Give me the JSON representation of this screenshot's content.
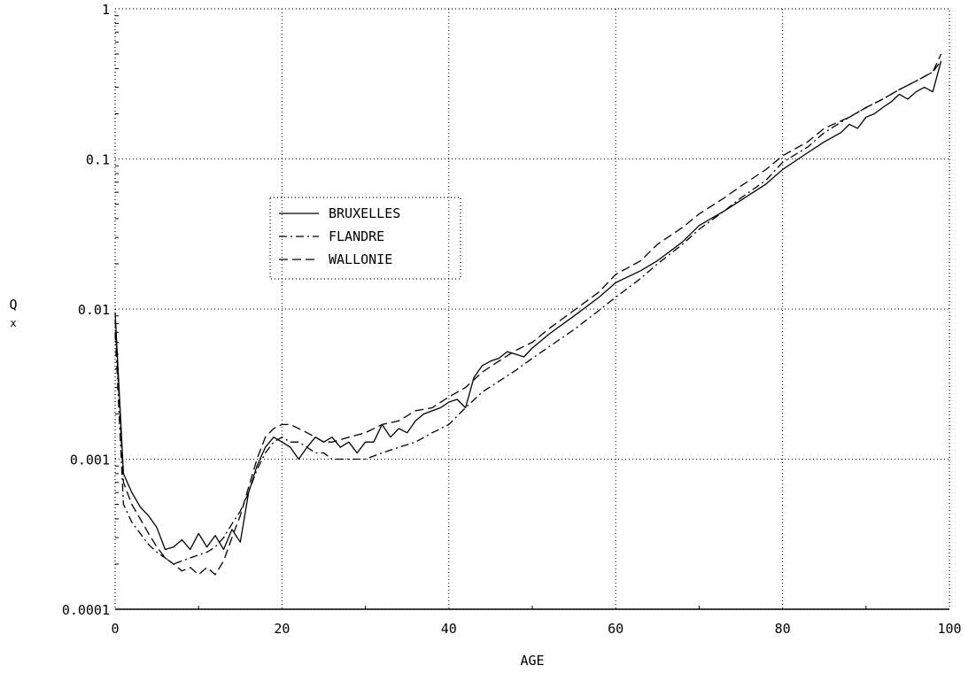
{
  "chart_data": {
    "type": "line",
    "title": "",
    "xlabel": "AGE",
    "ylabel": "Q",
    "ylabel_subscript": "x",
    "xlim": [
      0,
      100
    ],
    "ylim": [
      0.0001,
      1
    ],
    "yscale": "log",
    "grid": true,
    "legend_position": "upper-left",
    "x_ticks": [
      0,
      20,
      40,
      60,
      80,
      100
    ],
    "x_tick_labels": [
      "0",
      "20",
      "40",
      "60",
      "80",
      "100"
    ],
    "y_ticks": [
      0.0001,
      0.001,
      0.01,
      0.1,
      1
    ],
    "y_tick_labels": [
      "0.0001",
      "0.001",
      "0.01",
      "0.1",
      "1"
    ],
    "series": [
      {
        "name": "BRUXELLES",
        "dash": "solid",
        "x": [
          0,
          1,
          2,
          3,
          4,
          5,
          6,
          7,
          8,
          9,
          10,
          11,
          12,
          13,
          14,
          15,
          16,
          17,
          18,
          19,
          20,
          21,
          22,
          23,
          24,
          25,
          26,
          27,
          28,
          29,
          30,
          31,
          32,
          33,
          34,
          35,
          36,
          37,
          38,
          39,
          40,
          41,
          42,
          43,
          44,
          45,
          46,
          47,
          48,
          49,
          50,
          52,
          55,
          58,
          60,
          63,
          65,
          68,
          70,
          73,
          75,
          78,
          80,
          83,
          85,
          87,
          88,
          89,
          90,
          91,
          92,
          93,
          94,
          95,
          96,
          97,
          98,
          99
        ],
        "y": [
          0.0095,
          0.0008,
          0.0006,
          0.00048,
          0.00042,
          0.00035,
          0.00025,
          0.00026,
          0.00029,
          0.00025,
          0.00032,
          0.00026,
          0.00031,
          0.00025,
          0.00034,
          0.00028,
          0.0006,
          0.0009,
          0.0012,
          0.0014,
          0.0013,
          0.0012,
          0.001,
          0.0012,
          0.0014,
          0.0013,
          0.0014,
          0.0012,
          0.0013,
          0.0011,
          0.0013,
          0.0013,
          0.0017,
          0.0014,
          0.0016,
          0.0015,
          0.0018,
          0.002,
          0.0021,
          0.0022,
          0.0024,
          0.0025,
          0.0022,
          0.0035,
          0.0042,
          0.0045,
          0.0047,
          0.0052,
          0.005,
          0.0048,
          0.0055,
          0.0068,
          0.009,
          0.012,
          0.015,
          0.018,
          0.021,
          0.028,
          0.036,
          0.045,
          0.053,
          0.068,
          0.085,
          0.11,
          0.13,
          0.15,
          0.17,
          0.16,
          0.19,
          0.2,
          0.22,
          0.24,
          0.27,
          0.25,
          0.28,
          0.3,
          0.28,
          0.45
        ]
      },
      {
        "name": "FLANDRE",
        "dash": "dash-dot",
        "x": [
          0,
          1,
          2,
          3,
          4,
          5,
          6,
          7,
          8,
          9,
          10,
          11,
          12,
          13,
          14,
          15,
          16,
          17,
          18,
          19,
          20,
          21,
          22,
          23,
          24,
          25,
          26,
          27,
          28,
          29,
          30,
          32,
          34,
          36,
          38,
          40,
          42,
          44,
          46,
          48,
          50,
          52,
          55,
          58,
          60,
          63,
          65,
          68,
          70,
          73,
          75,
          78,
          80,
          83,
          85,
          88,
          90,
          92,
          94,
          96,
          98,
          99
        ],
        "y": [
          0.007,
          0.0005,
          0.00038,
          0.00032,
          0.00027,
          0.00024,
          0.00022,
          0.0002,
          0.00021,
          0.00022,
          0.00023,
          0.00024,
          0.00026,
          0.0003,
          0.00037,
          0.00045,
          0.0006,
          0.00085,
          0.0011,
          0.0013,
          0.0014,
          0.0013,
          0.0013,
          0.0012,
          0.0011,
          0.0011,
          0.001,
          0.001,
          0.001,
          0.001,
          0.001,
          0.0011,
          0.0012,
          0.0013,
          0.0015,
          0.0017,
          0.0022,
          0.0028,
          0.0033,
          0.0039,
          0.0047,
          0.0056,
          0.0073,
          0.0098,
          0.012,
          0.016,
          0.02,
          0.027,
          0.034,
          0.045,
          0.055,
          0.072,
          0.095,
          0.12,
          0.15,
          0.19,
          0.22,
          0.25,
          0.29,
          0.33,
          0.38,
          0.45
        ]
      },
      {
        "name": "WALLONIE",
        "dash": "dashed",
        "x": [
          0,
          1,
          2,
          3,
          4,
          5,
          6,
          7,
          8,
          9,
          10,
          11,
          12,
          13,
          14,
          15,
          16,
          17,
          18,
          19,
          20,
          21,
          22,
          23,
          24,
          25,
          26,
          28,
          30,
          32,
          34,
          36,
          38,
          40,
          42,
          44,
          46,
          48,
          50,
          52,
          55,
          58,
          60,
          63,
          65,
          68,
          70,
          73,
          75,
          78,
          80,
          83,
          85,
          88,
          90,
          92,
          94,
          96,
          98,
          99
        ],
        "y": [
          0.0085,
          0.0007,
          0.0005,
          0.0004,
          0.00032,
          0.00026,
          0.00022,
          0.0002,
          0.00018,
          0.00019,
          0.00017,
          0.00019,
          0.00017,
          0.00021,
          0.0003,
          0.00042,
          0.00065,
          0.001,
          0.0014,
          0.0016,
          0.0017,
          0.0017,
          0.0016,
          0.0015,
          0.0014,
          0.0013,
          0.0013,
          0.0014,
          0.0015,
          0.0017,
          0.0018,
          0.0021,
          0.0022,
          0.0026,
          0.003,
          0.0038,
          0.0045,
          0.0053,
          0.006,
          0.0074,
          0.0098,
          0.013,
          0.017,
          0.021,
          0.027,
          0.035,
          0.043,
          0.055,
          0.066,
          0.085,
          0.105,
          0.13,
          0.16,
          0.19,
          0.22,
          0.25,
          0.29,
          0.33,
          0.38,
          0.5
        ]
      }
    ]
  }
}
